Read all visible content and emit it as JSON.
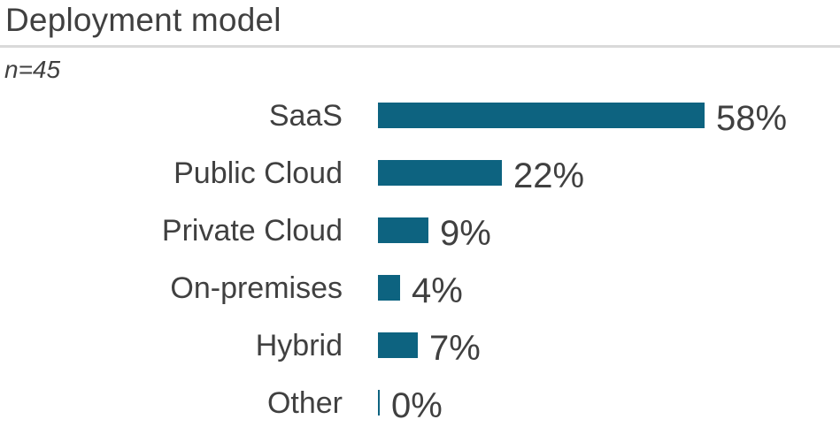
{
  "title": "Deployment model",
  "sample_note": "n=45",
  "colors": {
    "bar": "#0d6380",
    "text": "#404040",
    "divider": "#d9d9d9",
    "background": "#ffffff"
  },
  "chart_data": {
    "type": "bar",
    "orientation": "horizontal",
    "title": "Deployment model",
    "subtitle": "n=45",
    "categories": [
      "SaaS",
      "Public Cloud",
      "Private Cloud",
      "On-premises",
      "Hybrid",
      "Other"
    ],
    "values": [
      58,
      22,
      9,
      4,
      7,
      0
    ],
    "value_labels": [
      "58%",
      "22%",
      "9%",
      "4%",
      "7%",
      "0%"
    ],
    "unit": "%",
    "xlim": [
      0,
      100
    ],
    "grid": false,
    "legend": "none",
    "value_label_position": "end-of-bar",
    "category_label_position": "left"
  }
}
